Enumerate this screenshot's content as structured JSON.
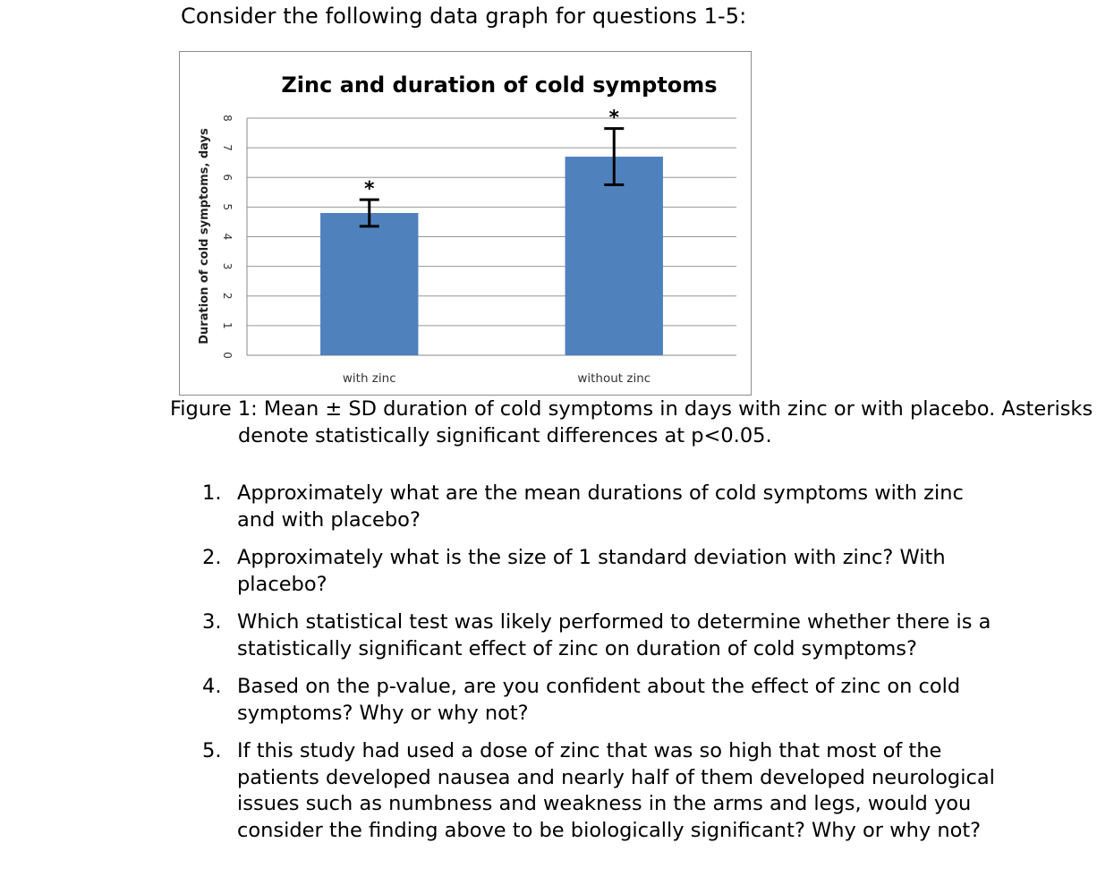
{
  "intro": "Consider the following data graph for questions 1-5:",
  "chart_data": {
    "type": "bar",
    "title": "Zinc and duration of cold symptoms",
    "ylabel": "Duration of cold symptoms, days",
    "xlabel": "",
    "categories": [
      "with zinc",
      "without zinc"
    ],
    "values": [
      4.8,
      6.7
    ],
    "error_bars_sd": [
      0.45,
      0.95
    ],
    "significance_markers": [
      "*",
      "*"
    ],
    "ylim": [
      0,
      8
    ],
    "yticks": [
      "0",
      "1",
      "2",
      "3",
      "4",
      "5",
      "6",
      "7",
      "8"
    ],
    "grid": true,
    "legend": "none",
    "bar_color": "#4f81bd"
  },
  "caption": "Figure 1: Mean ± SD duration of cold symptoms in days with zinc or with placebo. Asterisks denote statistically significant differences at p<0.05.",
  "questions": [
    {
      "num": "1.",
      "text": "Approximately what are the mean durations of cold symptoms with zinc and with placebo?"
    },
    {
      "num": "2.",
      "text": "Approximately what is the size of 1 standard deviation with zinc? With placebo?"
    },
    {
      "num": "3.",
      "text": "Which statistical test was likely performed to determine whether there is a statistically significant effect of zinc on duration of cold symptoms?"
    },
    {
      "num": "4.",
      "text": "Based on the p-value, are you confident about the effect of zinc on cold symptoms? Why or why not?"
    },
    {
      "num": "5.",
      "text": "If this study had used a dose of zinc that was so high that most of the patients developed nausea and nearly half of them developed neurological issues such as numbness and weakness in the arms and legs, would you consider the finding above to be biologically significant? Why or why not?"
    }
  ]
}
